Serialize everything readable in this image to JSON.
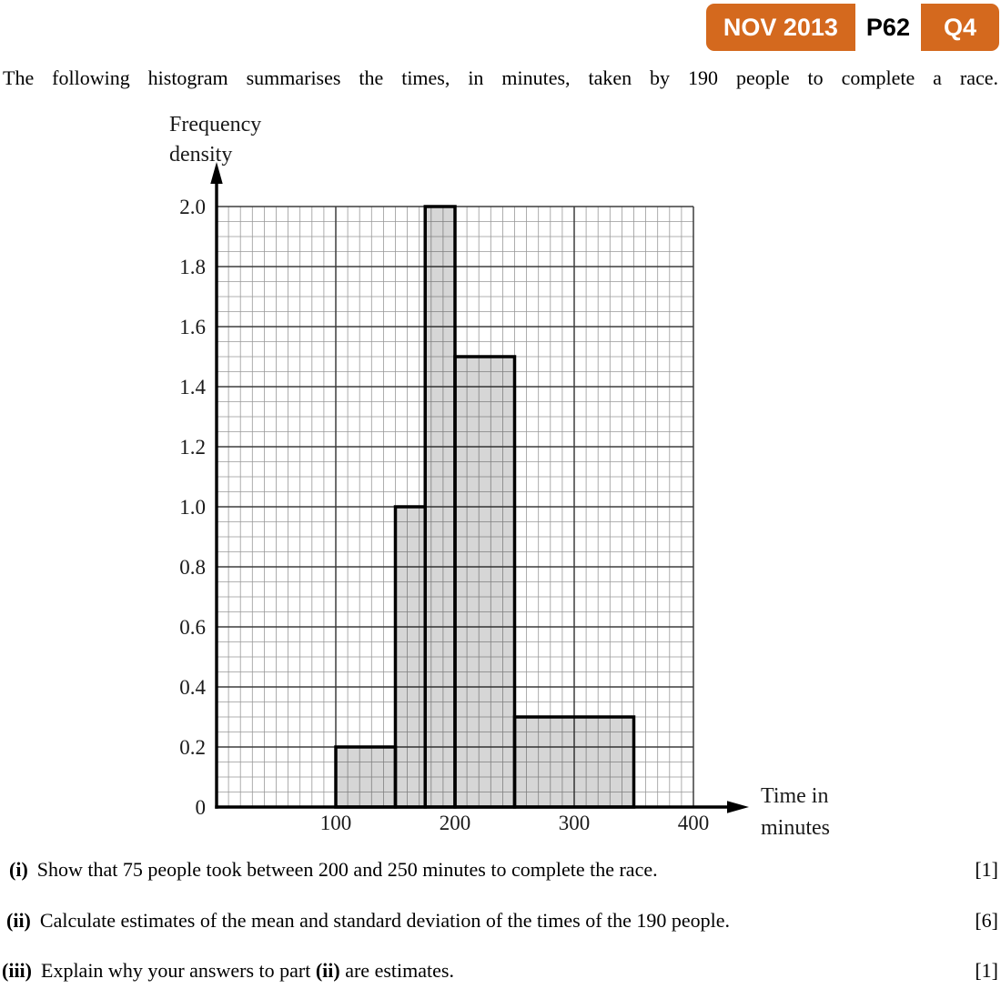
{
  "badge": {
    "session": "NOV 2013",
    "paper": "P62",
    "question": "Q4",
    "background_color": "#d4691e",
    "text_color": "#ffffff"
  },
  "intro_text": "The following histogram summarises the times, in minutes, taken by 190 people to complete a race.",
  "chart_data": {
    "type": "bar",
    "subtype": "histogram",
    "title": "",
    "xlabel": "Time in minutes",
    "ylabel": "Frequency density",
    "xlabel_lines": [
      "Time in",
      "minutes"
    ],
    "ylabel_lines": [
      "Frequency",
      "density"
    ],
    "xlim": [
      0,
      400
    ],
    "ylim": [
      0,
      2.0
    ],
    "x_ticks": [
      100,
      200,
      300,
      400
    ],
    "y_tick_labels": [
      "0",
      "0.2",
      "0.4",
      "0.6",
      "0.8",
      "1.0",
      "1.2",
      "1.4",
      "1.6",
      "1.8",
      "2.0"
    ],
    "x_major_step": 100,
    "x_minor_step": 10,
    "y_major_step": 0.2,
    "y_minor_step": 0.05,
    "grid": "on",
    "legend": "none",
    "bars": [
      {
        "from": 100,
        "to": 150,
        "frequency_density": 0.2
      },
      {
        "from": 150,
        "to": 175,
        "frequency_density": 1.0
      },
      {
        "from": 175,
        "to": 200,
        "frequency_density": 2.0
      },
      {
        "from": 200,
        "to": 250,
        "frequency_density": 1.5
      },
      {
        "from": 250,
        "to": 350,
        "frequency_density": 0.3
      }
    ],
    "colors": {
      "bar_fill": "#d6d6d6",
      "bar_stroke": "#000000",
      "grid_minor": "#999999",
      "grid_major": "#3d3d3d",
      "axis": "#000000",
      "text": "#1a1a1a"
    }
  },
  "questions": [
    {
      "label": "(i)",
      "text_pre": "Show that 75 people took between 200 and 250 minutes to complete the race.",
      "text_bold": "",
      "text_post": "",
      "marks": "[1]"
    },
    {
      "label": "(ii)",
      "text_pre": "Calculate estimates of the mean and standard deviation of the times of the 190 people.",
      "text_bold": "",
      "text_post": "",
      "marks": "[6]"
    },
    {
      "label": "(iii)",
      "text_pre": "Explain why your answers to part ",
      "text_bold": "(ii)",
      "text_post": " are estimates.",
      "marks": "[1]"
    }
  ]
}
